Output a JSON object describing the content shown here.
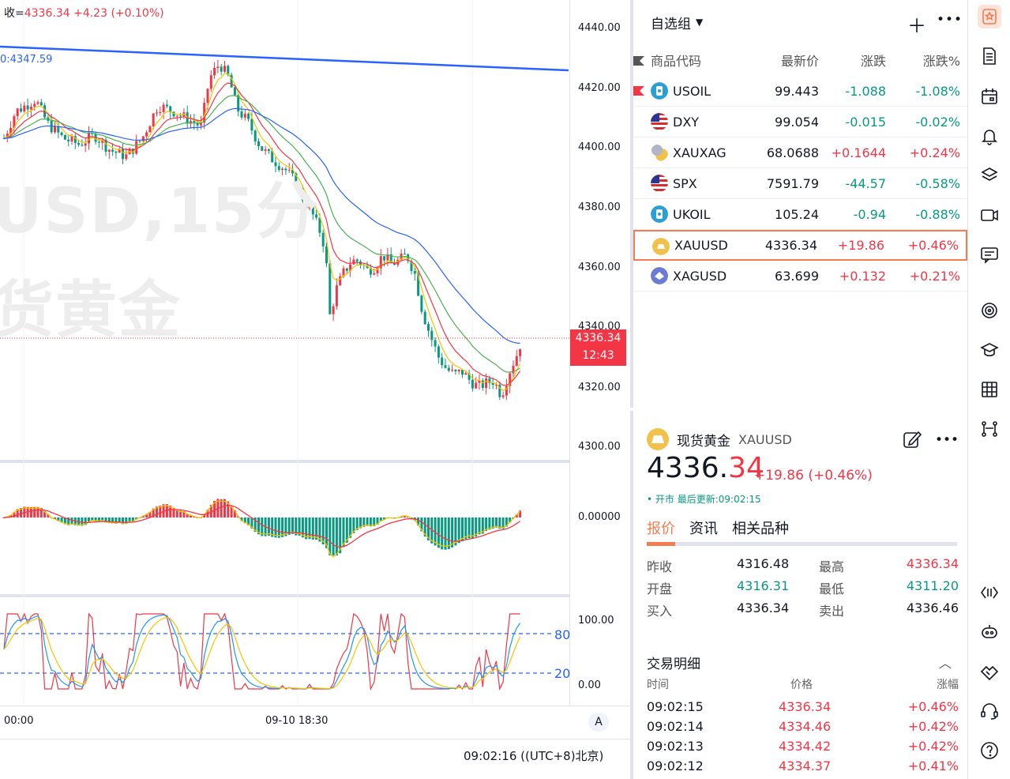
{
  "chart": {
    "ohlc_label_prefix": "收=",
    "ohlc_close": "4336.34",
    "ohlc_change": "+4.23",
    "ohlc_change_pct": "(+0.10%)",
    "trendline_label": "0:4347.59",
    "watermark_line1": "USD,15分",
    "watermark_line2": "货黄金",
    "price_axis": [
      "4440.00",
      "4420.00",
      "4400.00",
      "4380.00",
      "4360.00",
      "4340.00",
      "4320.00",
      "4300.00"
    ],
    "current_price": "4336.34",
    "countdown": "12:43",
    "macd_axis": "0.00000",
    "stoch_axis_top": "100.00",
    "stoch_axis_bottom": "0.00",
    "stoch_level_high": "80",
    "stoch_level_low": "20",
    "time_axis": [
      "00:00",
      "09-10 18:30"
    ],
    "auto_button": "A",
    "clock": "09:02:16  ((UTC+8)北京)",
    "colors": {
      "up": "#f23645",
      "down": "#089981",
      "trend": "#2962ff"
    }
  },
  "watchlist": {
    "title": "自选组",
    "columns": {
      "symbol": "商品代码",
      "last": "最新价",
      "change": "涨跌",
      "change_pct": "涨跌%"
    },
    "rows": [
      {
        "symbol": "USOIL",
        "last": "99.443",
        "change": "-1.088",
        "change_pct": "-1.08%",
        "dir": "down",
        "icon": "oil-icon",
        "flagged": true
      },
      {
        "symbol": "DXY",
        "last": "99.054",
        "change": "-0.015",
        "change_pct": "-0.02%",
        "dir": "down",
        "icon": "us-flag-icon",
        "flagged": false
      },
      {
        "symbol": "XAUXAG",
        "last": "68.0688",
        "change": "+0.1644",
        "change_pct": "+0.24%",
        "dir": "up",
        "icon": "gold-silver-icon",
        "flagged": false
      },
      {
        "symbol": "SPX",
        "last": "7591.79",
        "change": "-44.57",
        "change_pct": "-0.58%",
        "dir": "down",
        "icon": "us-flag-icon",
        "flagged": false
      },
      {
        "symbol": "UKOIL",
        "last": "105.24",
        "change": "-0.94",
        "change_pct": "-0.88%",
        "dir": "down",
        "icon": "oil-icon",
        "flagged": false
      },
      {
        "symbol": "XAUUSD",
        "last": "4336.34",
        "change": "+19.86",
        "change_pct": "+0.46%",
        "dir": "up",
        "icon": "gold-icon",
        "flagged": false
      },
      {
        "symbol": "XAGUSD",
        "last": "63.699",
        "change": "+0.132",
        "change_pct": "+0.21%",
        "dir": "up",
        "icon": "silver-icon",
        "flagged": false
      }
    ]
  },
  "detail": {
    "name": "现货黄金",
    "symbol": "XAUUSD",
    "price_main": "4336.",
    "price_frac": "34",
    "change": "+19.86 (+0.46%)",
    "status": "• 开市 最后更新:09:02:15",
    "tabs": [
      "报价",
      "资讯",
      "相关品种"
    ],
    "stats": [
      {
        "l1": "昨收",
        "v1": "4316.48",
        "c1": "#131722",
        "l2": "最高",
        "v2": "4336.34",
        "c2": "#f23645"
      },
      {
        "l1": "开盘",
        "v1": "4316.31",
        "c1": "#089981",
        "l2": "最低",
        "v2": "4311.20",
        "c2": "#089981"
      },
      {
        "l1": "买入",
        "v1": "4336.34",
        "c1": "#131722",
        "l2": "卖出",
        "v2": "4336.46",
        "c2": "#131722"
      }
    ],
    "trades_title": "交易明细",
    "trades_head": {
      "time": "时间",
      "price": "价格",
      "pct": "涨幅"
    },
    "trades": [
      {
        "time": "09:02:15",
        "price": "4336.34",
        "pct": "+0.46%"
      },
      {
        "time": "09:02:14",
        "price": "4334.46",
        "pct": "+0.42%"
      },
      {
        "time": "09:02:13",
        "price": "4334.42",
        "pct": "+0.42%"
      },
      {
        "time": "09:02:12",
        "price": "4334.37",
        "pct": "+0.41%"
      }
    ]
  },
  "toolbar": [
    "watchlist-icon",
    "news-icon",
    "calendar-icon",
    "alert-icon",
    "layers-icon",
    "video-icon",
    "chat-icon",
    "target-icon",
    "education-icon",
    "table-icon",
    "tree-icon",
    "code-icon",
    "robot-icon",
    "handshake-icon",
    "support-icon",
    "help-icon"
  ]
}
